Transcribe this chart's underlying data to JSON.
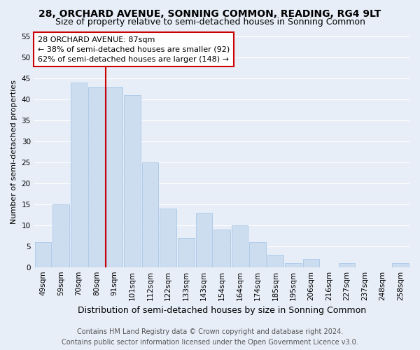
{
  "title": "28, ORCHARD AVENUE, SONNING COMMON, READING, RG4 9LT",
  "subtitle": "Size of property relative to semi-detached houses in Sonning Common",
  "xlabel": "Distribution of semi-detached houses by size in Sonning Common",
  "ylabel": "Number of semi-detached properties",
  "categories": [
    "49sqm",
    "59sqm",
    "70sqm",
    "80sqm",
    "91sqm",
    "101sqm",
    "112sqm",
    "122sqm",
    "133sqm",
    "143sqm",
    "154sqm",
    "164sqm",
    "174sqm",
    "185sqm",
    "195sqm",
    "206sqm",
    "216sqm",
    "227sqm",
    "237sqm",
    "248sqm",
    "258sqm"
  ],
  "values": [
    6,
    15,
    44,
    43,
    43,
    41,
    25,
    14,
    7,
    13,
    9,
    10,
    6,
    3,
    1,
    2,
    0,
    1,
    0,
    0,
    1
  ],
  "bar_color": "#ccddf0",
  "bar_edge_color": "#a8c8e8",
  "property_line_index": 4,
  "property_line_color": "#cc0000",
  "ylim": [
    0,
    55
  ],
  "yticks": [
    0,
    5,
    10,
    15,
    20,
    25,
    30,
    35,
    40,
    45,
    50,
    55
  ],
  "annotation_title": "28 ORCHARD AVENUE: 87sqm",
  "annotation_line1": "← 38% of semi-detached houses are smaller (92)",
  "annotation_line2": "62% of semi-detached houses are larger (148) →",
  "annotation_box_facecolor": "#ffffff",
  "annotation_box_edgecolor": "#cc0000",
  "footer_line1": "Contains HM Land Registry data © Crown copyright and database right 2024.",
  "footer_line2": "Contains public sector information licensed under the Open Government Licence v3.0.",
  "fig_facecolor": "#e8eef8",
  "plot_facecolor": "#e8eef8",
  "grid_color": "#ffffff",
  "title_fontsize": 10,
  "subtitle_fontsize": 9,
  "ylabel_fontsize": 8,
  "xlabel_fontsize": 9,
  "tick_fontsize": 7.5,
  "annotation_fontsize": 8,
  "footer_fontsize": 7
}
